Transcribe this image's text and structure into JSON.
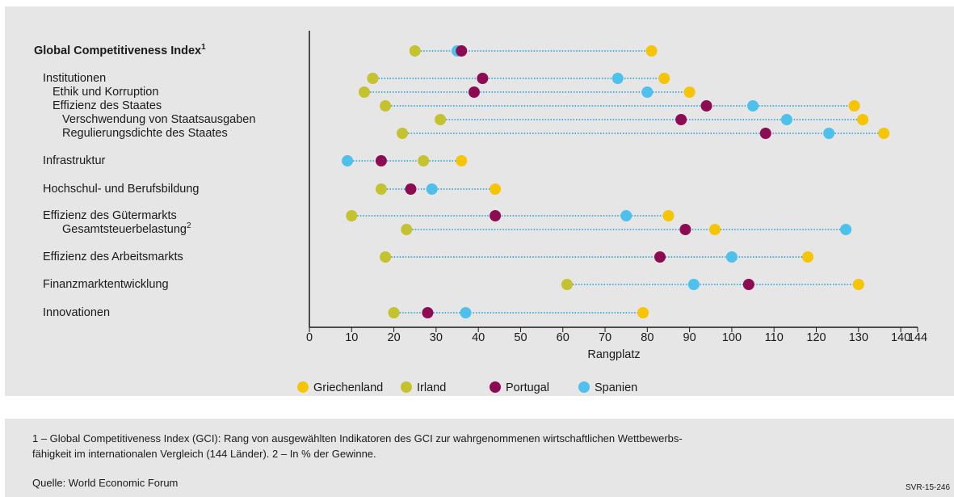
{
  "chart_data": {
    "type": "dotplot",
    "categories": [
      "Global Competitiveness Index",
      "Institutionen",
      "Ethik und Korruption",
      "Effizienz des Staates",
      "Verschwendung von Staatsausgaben",
      "Regulierungsdichte des Staates",
      "Infrastruktur",
      "Hochschul- und Berufsbildung",
      "Effizienz des Gütermarkts",
      "Gesamtsteuerbelastung",
      "Effizienz des Arbeitsmarkts",
      "Finanzmarktentwicklung",
      "Innovationen"
    ],
    "category_superscripts": [
      "1",
      null,
      null,
      null,
      null,
      null,
      null,
      null,
      null,
      "2",
      null,
      null,
      null
    ],
    "series": [
      {
        "name": "Griechenland",
        "color": "#f6c400",
        "values": [
          81,
          84,
          90,
          129,
          131,
          136,
          36,
          44,
          85,
          96,
          118,
          130,
          79
        ]
      },
      {
        "name": "Irland",
        "color": "#c4c22e",
        "values": [
          25,
          15,
          13,
          18,
          31,
          22,
          27,
          17,
          10,
          23,
          18,
          61,
          20
        ]
      },
      {
        "name": "Portugal",
        "color": "#8c0b52",
        "values": [
          36,
          41,
          39,
          94,
          88,
          108,
          17,
          24,
          44,
          89,
          83,
          104,
          28
        ]
      },
      {
        "name": "Spanien",
        "color": "#4dc0ec",
        "values": [
          35,
          73,
          80,
          105,
          113,
          123,
          9,
          29,
          75,
          127,
          100,
          91,
          37
        ]
      }
    ],
    "connector_color": "#1b9ad6",
    "xlabel": "Rangplatz",
    "xlim": [
      0,
      144
    ],
    "xticks": [
      0,
      10,
      20,
      30,
      40,
      50,
      60,
      70,
      80,
      90,
      100,
      110,
      120,
      130,
      140,
      144
    ]
  },
  "footnote": {
    "lines": [
      "1 – Global Competitiveness Index (GCI): Rang von ausgewählten Indikatoren des GCI zur wahrgenommenen wirtschaftlichen Wettbewerbs-",
      "fähigkeit im internationalen Vergleich (144 Länder).  2 – In % der Gewinne."
    ],
    "source": "Quelle: World Economic Forum",
    "code": "SVR-15-246"
  }
}
